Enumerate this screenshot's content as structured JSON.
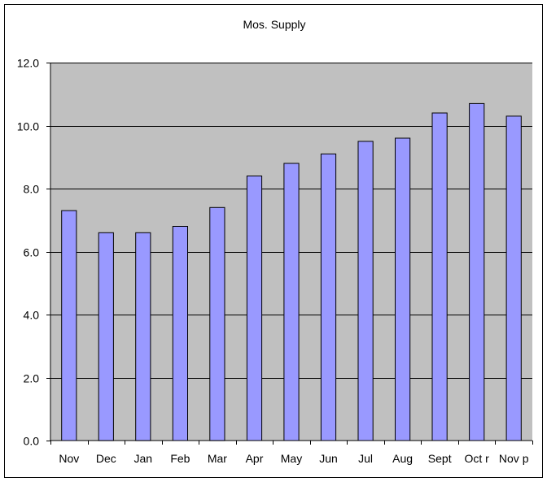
{
  "chart_data": {
    "type": "bar",
    "title": "Mos. Supply",
    "xlabel": "",
    "ylabel": "",
    "categories": [
      "Nov",
      "Dec",
      "Jan",
      "Feb",
      "Mar",
      "Apr",
      "May",
      "Jun",
      "Jul",
      "Aug",
      "Sept",
      "Oct r",
      "Nov p"
    ],
    "values": [
      7.3,
      6.6,
      6.6,
      6.8,
      7.4,
      8.4,
      8.8,
      9.1,
      9.5,
      9.6,
      10.4,
      10.7,
      10.3
    ],
    "ylim": [
      0,
      12
    ],
    "yticks": [
      "0.0",
      "2.0",
      "4.0",
      "6.0",
      "8.0",
      "10.0",
      "12.0"
    ],
    "grid": true,
    "legend": "none",
    "colors": {
      "bar_fill": "#9999ff",
      "bar_stroke": "#000000",
      "plot_background": "#c0c0c0",
      "gridline": "#000000",
      "page_background": "#ffffff"
    }
  }
}
